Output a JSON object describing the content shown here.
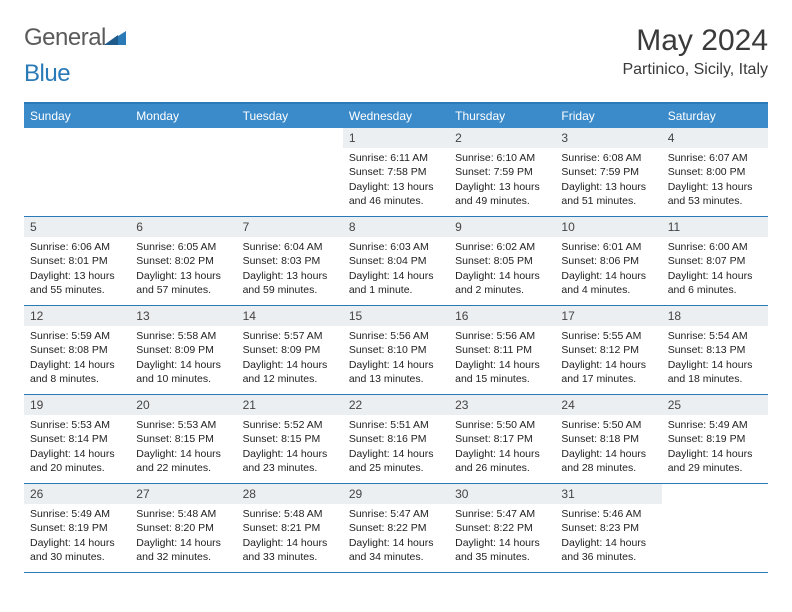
{
  "logo": {
    "part1": "General",
    "part2": "Blue"
  },
  "title": "May 2024",
  "location": "Partinico, Sicily, Italy",
  "colors": {
    "header_bar": "#3b8aca",
    "border": "#2a7ab8",
    "daynum_bg": "#eceff2",
    "text": "#222222"
  },
  "daysOfWeek": [
    "Sunday",
    "Monday",
    "Tuesday",
    "Wednesday",
    "Thursday",
    "Friday",
    "Saturday"
  ],
  "weeks": [
    [
      {
        "n": "",
        "sunrise": "",
        "sunset": "",
        "daylight": ""
      },
      {
        "n": "",
        "sunrise": "",
        "sunset": "",
        "daylight": ""
      },
      {
        "n": "",
        "sunrise": "",
        "sunset": "",
        "daylight": ""
      },
      {
        "n": "1",
        "sunrise": "Sunrise: 6:11 AM",
        "sunset": "Sunset: 7:58 PM",
        "daylight": "Daylight: 13 hours and 46 minutes."
      },
      {
        "n": "2",
        "sunrise": "Sunrise: 6:10 AM",
        "sunset": "Sunset: 7:59 PM",
        "daylight": "Daylight: 13 hours and 49 minutes."
      },
      {
        "n": "3",
        "sunrise": "Sunrise: 6:08 AM",
        "sunset": "Sunset: 7:59 PM",
        "daylight": "Daylight: 13 hours and 51 minutes."
      },
      {
        "n": "4",
        "sunrise": "Sunrise: 6:07 AM",
        "sunset": "Sunset: 8:00 PM",
        "daylight": "Daylight: 13 hours and 53 minutes."
      }
    ],
    [
      {
        "n": "5",
        "sunrise": "Sunrise: 6:06 AM",
        "sunset": "Sunset: 8:01 PM",
        "daylight": "Daylight: 13 hours and 55 minutes."
      },
      {
        "n": "6",
        "sunrise": "Sunrise: 6:05 AM",
        "sunset": "Sunset: 8:02 PM",
        "daylight": "Daylight: 13 hours and 57 minutes."
      },
      {
        "n": "7",
        "sunrise": "Sunrise: 6:04 AM",
        "sunset": "Sunset: 8:03 PM",
        "daylight": "Daylight: 13 hours and 59 minutes."
      },
      {
        "n": "8",
        "sunrise": "Sunrise: 6:03 AM",
        "sunset": "Sunset: 8:04 PM",
        "daylight": "Daylight: 14 hours and 1 minute."
      },
      {
        "n": "9",
        "sunrise": "Sunrise: 6:02 AM",
        "sunset": "Sunset: 8:05 PM",
        "daylight": "Daylight: 14 hours and 2 minutes."
      },
      {
        "n": "10",
        "sunrise": "Sunrise: 6:01 AM",
        "sunset": "Sunset: 8:06 PM",
        "daylight": "Daylight: 14 hours and 4 minutes."
      },
      {
        "n": "11",
        "sunrise": "Sunrise: 6:00 AM",
        "sunset": "Sunset: 8:07 PM",
        "daylight": "Daylight: 14 hours and 6 minutes."
      }
    ],
    [
      {
        "n": "12",
        "sunrise": "Sunrise: 5:59 AM",
        "sunset": "Sunset: 8:08 PM",
        "daylight": "Daylight: 14 hours and 8 minutes."
      },
      {
        "n": "13",
        "sunrise": "Sunrise: 5:58 AM",
        "sunset": "Sunset: 8:09 PM",
        "daylight": "Daylight: 14 hours and 10 minutes."
      },
      {
        "n": "14",
        "sunrise": "Sunrise: 5:57 AM",
        "sunset": "Sunset: 8:09 PM",
        "daylight": "Daylight: 14 hours and 12 minutes."
      },
      {
        "n": "15",
        "sunrise": "Sunrise: 5:56 AM",
        "sunset": "Sunset: 8:10 PM",
        "daylight": "Daylight: 14 hours and 13 minutes."
      },
      {
        "n": "16",
        "sunrise": "Sunrise: 5:56 AM",
        "sunset": "Sunset: 8:11 PM",
        "daylight": "Daylight: 14 hours and 15 minutes."
      },
      {
        "n": "17",
        "sunrise": "Sunrise: 5:55 AM",
        "sunset": "Sunset: 8:12 PM",
        "daylight": "Daylight: 14 hours and 17 minutes."
      },
      {
        "n": "18",
        "sunrise": "Sunrise: 5:54 AM",
        "sunset": "Sunset: 8:13 PM",
        "daylight": "Daylight: 14 hours and 18 minutes."
      }
    ],
    [
      {
        "n": "19",
        "sunrise": "Sunrise: 5:53 AM",
        "sunset": "Sunset: 8:14 PM",
        "daylight": "Daylight: 14 hours and 20 minutes."
      },
      {
        "n": "20",
        "sunrise": "Sunrise: 5:53 AM",
        "sunset": "Sunset: 8:15 PM",
        "daylight": "Daylight: 14 hours and 22 minutes."
      },
      {
        "n": "21",
        "sunrise": "Sunrise: 5:52 AM",
        "sunset": "Sunset: 8:15 PM",
        "daylight": "Daylight: 14 hours and 23 minutes."
      },
      {
        "n": "22",
        "sunrise": "Sunrise: 5:51 AM",
        "sunset": "Sunset: 8:16 PM",
        "daylight": "Daylight: 14 hours and 25 minutes."
      },
      {
        "n": "23",
        "sunrise": "Sunrise: 5:50 AM",
        "sunset": "Sunset: 8:17 PM",
        "daylight": "Daylight: 14 hours and 26 minutes."
      },
      {
        "n": "24",
        "sunrise": "Sunrise: 5:50 AM",
        "sunset": "Sunset: 8:18 PM",
        "daylight": "Daylight: 14 hours and 28 minutes."
      },
      {
        "n": "25",
        "sunrise": "Sunrise: 5:49 AM",
        "sunset": "Sunset: 8:19 PM",
        "daylight": "Daylight: 14 hours and 29 minutes."
      }
    ],
    [
      {
        "n": "26",
        "sunrise": "Sunrise: 5:49 AM",
        "sunset": "Sunset: 8:19 PM",
        "daylight": "Daylight: 14 hours and 30 minutes."
      },
      {
        "n": "27",
        "sunrise": "Sunrise: 5:48 AM",
        "sunset": "Sunset: 8:20 PM",
        "daylight": "Daylight: 14 hours and 32 minutes."
      },
      {
        "n": "28",
        "sunrise": "Sunrise: 5:48 AM",
        "sunset": "Sunset: 8:21 PM",
        "daylight": "Daylight: 14 hours and 33 minutes."
      },
      {
        "n": "29",
        "sunrise": "Sunrise: 5:47 AM",
        "sunset": "Sunset: 8:22 PM",
        "daylight": "Daylight: 14 hours and 34 minutes."
      },
      {
        "n": "30",
        "sunrise": "Sunrise: 5:47 AM",
        "sunset": "Sunset: 8:22 PM",
        "daylight": "Daylight: 14 hours and 35 minutes."
      },
      {
        "n": "31",
        "sunrise": "Sunrise: 5:46 AM",
        "sunset": "Sunset: 8:23 PM",
        "daylight": "Daylight: 14 hours and 36 minutes."
      },
      {
        "n": "",
        "sunrise": "",
        "sunset": "",
        "daylight": ""
      }
    ]
  ]
}
